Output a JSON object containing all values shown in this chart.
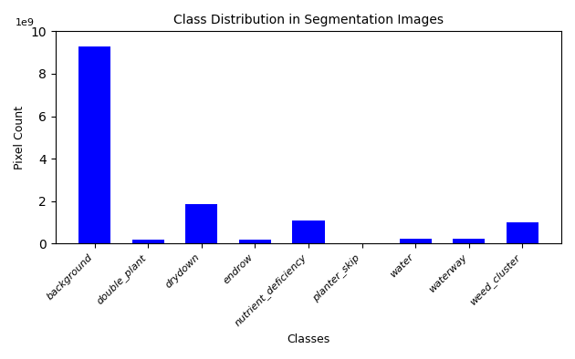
{
  "categories": [
    "background",
    "double_plant",
    "drydown",
    "endrow",
    "nutrient_deficiency",
    "planter_skip",
    "water",
    "waterway",
    "weed_cluster"
  ],
  "values": [
    9300000000,
    200000000,
    1850000000,
    200000000,
    1100000000,
    30000000,
    230000000,
    250000000,
    1000000000
  ],
  "bar_color": "#0000ff",
  "title": "Class Distribution in Segmentation Images",
  "ylabel": "Pixel Count",
  "xlabel": "Classes",
  "ylim": [
    0,
    10000000000
  ],
  "yticks": [
    0,
    2000000000,
    4000000000,
    6000000000,
    8000000000,
    10000000000
  ],
  "title_fontsize": 10,
  "label_fontsize": 9,
  "tick_fontsize": 8,
  "background_color": "#ffffff"
}
